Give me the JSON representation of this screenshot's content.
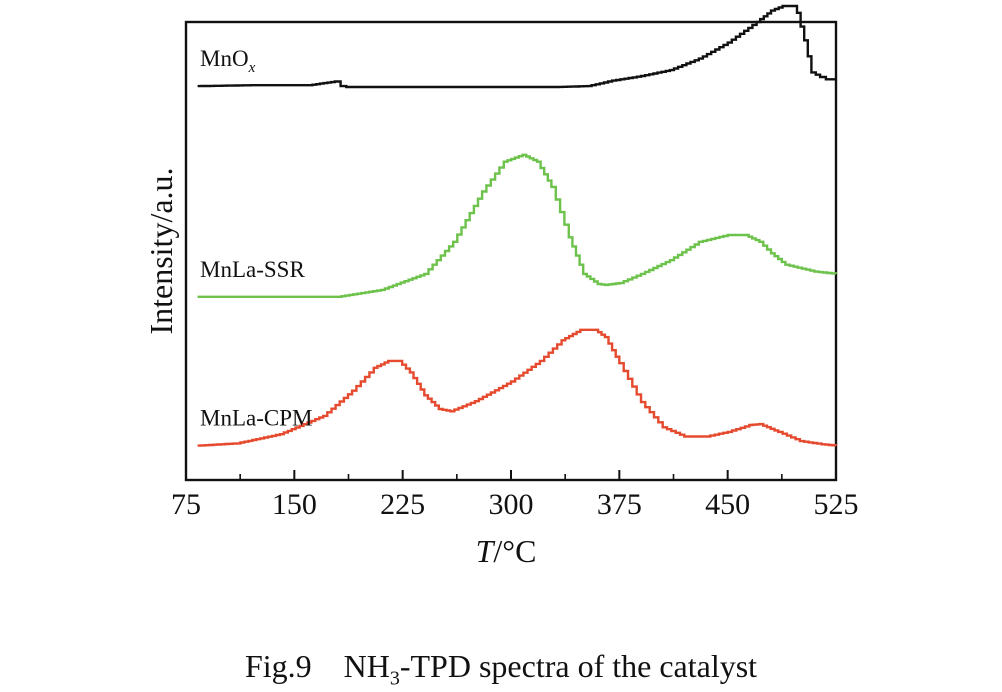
{
  "caption": {
    "fig_number": "Fig.9",
    "nh3_main": "NH",
    "nh3_sub": "3",
    "rest": "-TPD spectra of the catalyst"
  },
  "chart_data": {
    "type": "line",
    "xlabel_italic": "T",
    "xlabel_unit": "/°C",
    "ylabel": "Intensity/a.u.",
    "xlim": [
      75,
      525
    ],
    "ylim": [
      0,
      10
    ],
    "xticks": [
      75,
      150,
      225,
      300,
      375,
      450,
      525
    ],
    "yticks_shown": false,
    "grid": false,
    "series": [
      {
        "name": "MnO",
        "name_sub": "x",
        "color": "#111111",
        "x": [
          83,
          120,
          160,
          178,
          182,
          186,
          250,
          330,
          353,
          370,
          390,
          410,
          430,
          450,
          470,
          480,
          488,
          494,
          498,
          503,
          508,
          514,
          518,
          525
        ],
        "y": [
          8.6,
          8.62,
          8.62,
          8.7,
          8.6,
          8.58,
          8.58,
          8.58,
          8.6,
          8.72,
          8.82,
          8.95,
          9.2,
          9.55,
          10.0,
          10.25,
          10.35,
          10.35,
          10.2,
          9.6,
          8.9,
          8.8,
          8.75,
          8.75
        ]
      },
      {
        "name": "MnLa-SSR",
        "name_sub": "",
        "color": "#6cc24a",
        "x": [
          83,
          180,
          210,
          240,
          260,
          280,
          295,
          308,
          318,
          328,
          340,
          350,
          360,
          365,
          375,
          390,
          410,
          430,
          450,
          462,
          472,
          480,
          490,
          510,
          525
        ],
        "y": [
          4.0,
          4.0,
          4.15,
          4.5,
          5.2,
          6.3,
          6.95,
          7.1,
          6.95,
          6.4,
          5.3,
          4.5,
          4.28,
          4.26,
          4.3,
          4.5,
          4.8,
          5.2,
          5.35,
          5.35,
          5.2,
          4.95,
          4.7,
          4.55,
          4.5
        ]
      },
      {
        "name": "MnLa-CPM",
        "name_sub": "",
        "color": "#e64a2e",
        "x": [
          83,
          110,
          140,
          170,
          190,
          205,
          215,
          222,
          230,
          240,
          250,
          258,
          275,
          300,
          320,
          335,
          348,
          358,
          365,
          375,
          390,
          405,
          420,
          435,
          450,
          465,
          472,
          485,
          500,
          515,
          525
        ],
        "y": [
          0.75,
          0.8,
          1.0,
          1.4,
          1.95,
          2.45,
          2.6,
          2.6,
          2.35,
          1.85,
          1.55,
          1.5,
          1.72,
          2.15,
          2.6,
          3.05,
          3.28,
          3.28,
          3.12,
          2.55,
          1.7,
          1.15,
          0.95,
          0.95,
          1.05,
          1.2,
          1.22,
          1.05,
          0.85,
          0.78,
          0.75
        ]
      }
    ]
  }
}
